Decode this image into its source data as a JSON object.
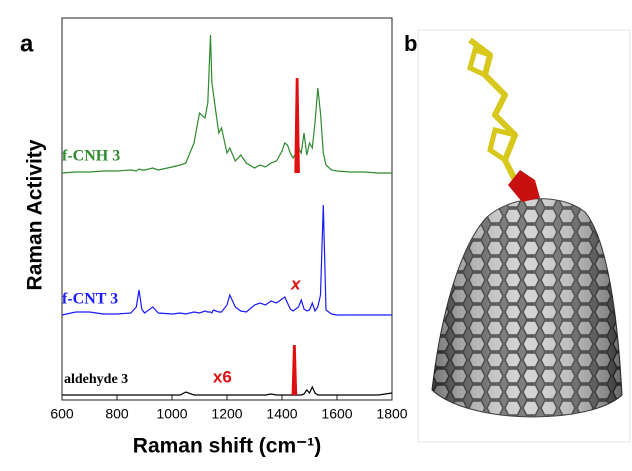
{
  "panels": [
    "a",
    "b"
  ],
  "chart_data": {
    "type": "line",
    "xlabel": "Raman shift (cm⁻¹)",
    "ylabel": "Raman Activity",
    "xlim": [
      600,
      1800
    ],
    "xticks": [
      600,
      800,
      1000,
      1200,
      1400,
      1600,
      1800
    ],
    "ylim": [
      0,
      140
    ],
    "x": [
      600,
      650,
      700,
      750,
      800,
      850,
      870,
      880,
      890,
      900,
      930,
      950,
      1000,
      1030,
      1050,
      1080,
      1100,
      1120,
      1130,
      1140,
      1145,
      1150,
      1160,
      1170,
      1180,
      1200,
      1210,
      1230,
      1250,
      1270,
      1300,
      1320,
      1340,
      1360,
      1380,
      1400,
      1410,
      1420,
      1430,
      1440,
      1460,
      1470,
      1480,
      1490,
      1500,
      1510,
      1520,
      1530,
      1540,
      1550,
      1560,
      1580,
      1600,
      1650,
      1700,
      1750,
      1800
    ],
    "series": [
      {
        "name": "f-CNH 3",
        "color": "#2e8b2e",
        "values": [
          0,
          1,
          1,
          2,
          2,
          3,
          2,
          4,
          3,
          3,
          5,
          3,
          6,
          8,
          10,
          30,
          60,
          55,
          70,
          138,
          90,
          80,
          60,
          40,
          45,
          20,
          25,
          12,
          18,
          10,
          5,
          8,
          6,
          10,
          12,
          22,
          30,
          28,
          20,
          15,
          25,
          20,
          40,
          18,
          30,
          25,
          50,
          85,
          60,
          20,
          8,
          3,
          2,
          1,
          1,
          0,
          0
        ],
        "peak": {
          "x": 1455,
          "value": 95,
          "color": "#e01010"
        }
      },
      {
        "name": "f-CNT 3",
        "color": "#1a1aff",
        "values": [
          0,
          3,
          3,
          1,
          1,
          2,
          8,
          25,
          6,
          2,
          8,
          2,
          1,
          2,
          1,
          3,
          2,
          4,
          3,
          3,
          2,
          5,
          4,
          3,
          3,
          10,
          20,
          8,
          4,
          3,
          10,
          12,
          10,
          14,
          12,
          16,
          18,
          12,
          6,
          4,
          8,
          15,
          6,
          4,
          5,
          12,
          4,
          8,
          20,
          110,
          5,
          1,
          0,
          0,
          0,
          0,
          0
        ]
      },
      {
        "name": "aldehyde 3",
        "color": "#000000",
        "values": [
          0,
          0,
          0,
          0,
          0,
          0,
          0,
          0,
          0,
          0,
          0,
          0,
          0,
          0,
          3,
          0,
          0,
          0,
          0,
          0,
          0,
          0,
          0,
          0,
          0,
          0,
          0,
          0,
          0,
          0,
          0,
          0,
          0,
          1,
          0,
          0,
          0,
          0,
          0,
          0,
          0,
          0,
          1,
          5,
          2,
          8,
          2,
          0,
          0,
          0,
          0,
          0,
          0,
          0,
          0,
          0,
          2
        ],
        "peak": {
          "x": 1445,
          "value": 50,
          "color": "#e01010"
        }
      }
    ],
    "annotations": [
      "x",
      "x6"
    ],
    "annotation_color": "#e01010"
  }
}
